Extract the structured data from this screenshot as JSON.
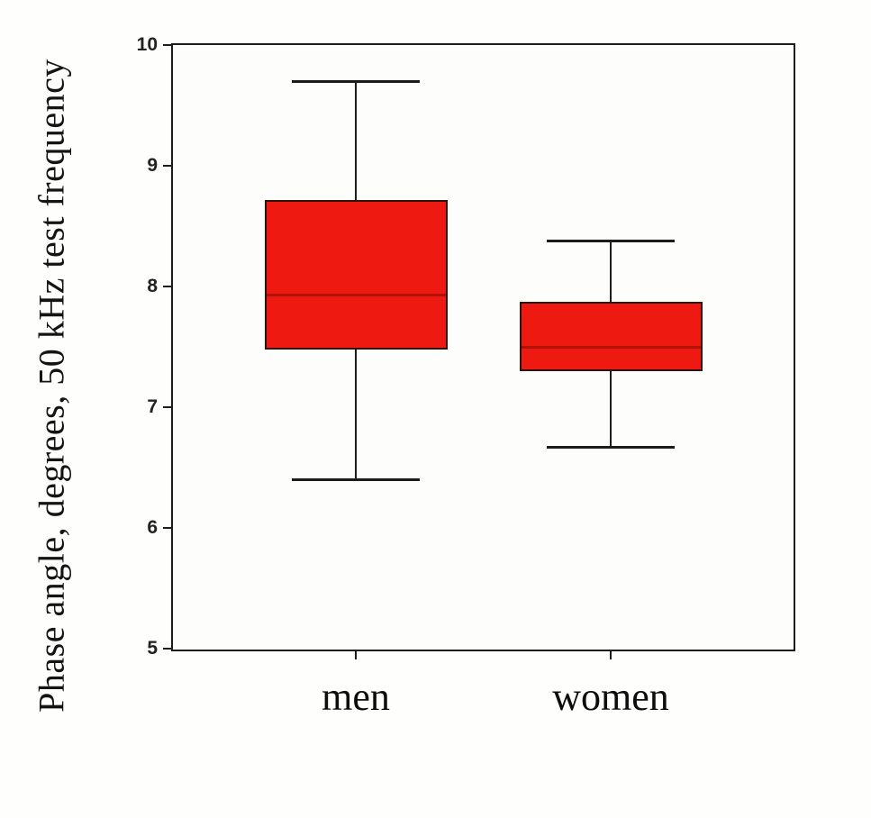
{
  "chart_data": {
    "type": "box",
    "title": "",
    "ylabel": "Phase angle, degrees, 50 kHz test frequency",
    "xlabel": "",
    "ylim": [
      5,
      10
    ],
    "yticks": [
      5,
      6,
      7,
      8,
      9,
      10
    ],
    "grid": false,
    "legend": false,
    "categories": [
      "men",
      "women"
    ],
    "boxes": [
      {
        "category": "men",
        "min": 6.4,
        "q1": 7.48,
        "median": 7.93,
        "q3": 8.72,
        "max": 9.7
      },
      {
        "category": "women",
        "min": 6.67,
        "q1": 7.3,
        "median": 7.5,
        "q3": 7.87,
        "max": 8.38
      }
    ],
    "colors": {
      "box_fill": "#ee1a12",
      "box_border": "#2e120c",
      "median": "#b11205",
      "axis": "#1c1c1c",
      "text": "#111111"
    }
  }
}
